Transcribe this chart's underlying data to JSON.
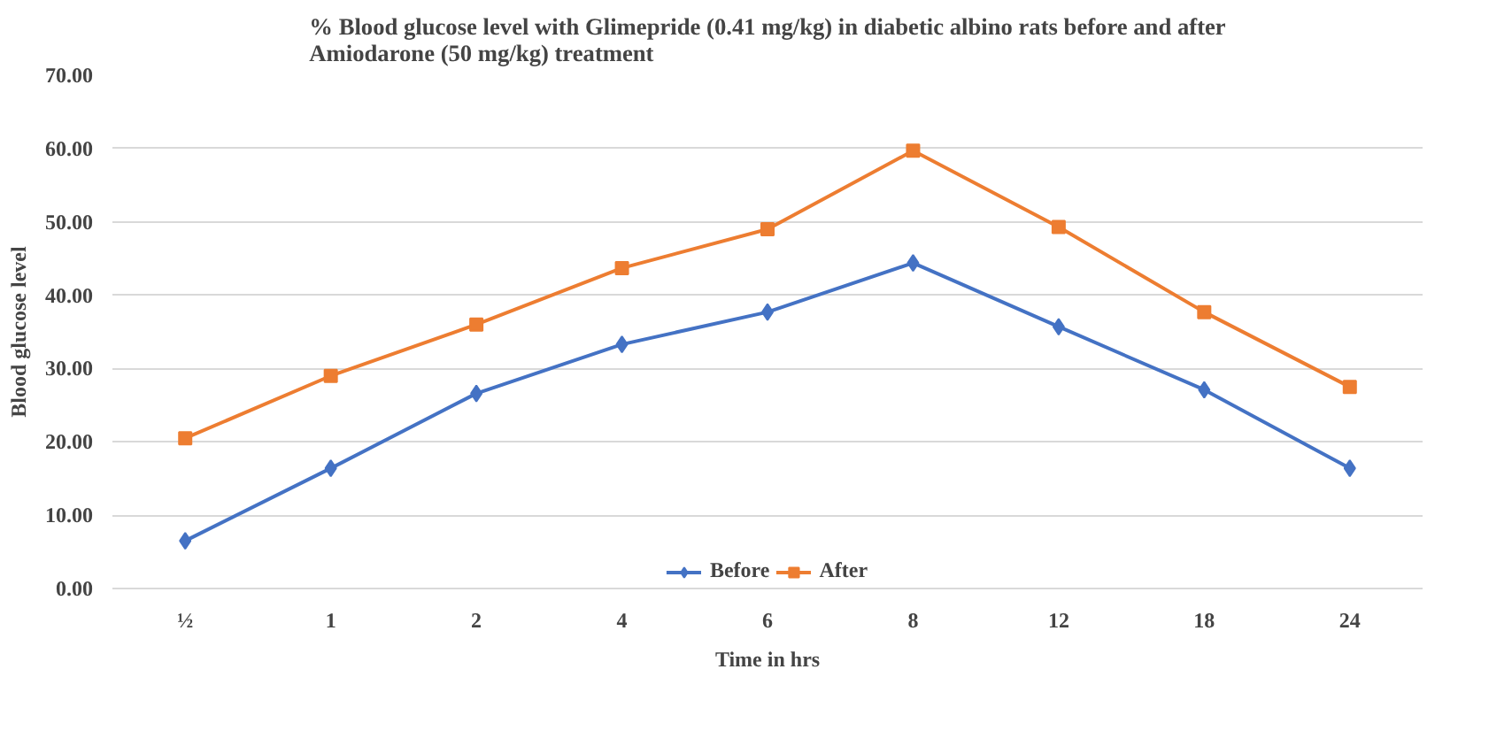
{
  "chart_data": {
    "type": "line",
    "title": "% Blood glucose level with Glimepride (0.41 mg/kg) in diabetic albino rats before and after\nAmiodarone (50 mg/kg) treatment",
    "xlabel": "Time in hrs",
    "ylabel": "Blood glucose level",
    "categories": [
      "½",
      "1",
      "2",
      "4",
      "6",
      "8",
      "12",
      "18",
      "24"
    ],
    "series": [
      {
        "name": "Before",
        "color": "#4472c4",
        "marker": "diamond",
        "values": [
          6.5,
          16.4,
          26.6,
          33.3,
          37.7,
          44.4,
          35.7,
          27.1,
          16.4
        ]
      },
      {
        "name": "After",
        "color": "#ed7d31",
        "marker": "square",
        "values": [
          20.5,
          29.0,
          36.0,
          43.7,
          49.0,
          59.7,
          49.3,
          37.7,
          27.5
        ]
      }
    ],
    "ylim": [
      0,
      70
    ],
    "yticks": [
      {
        "value": 0,
        "label": "0.00"
      },
      {
        "value": 10,
        "label": "10.00"
      },
      {
        "value": 20,
        "label": "20.00"
      },
      {
        "value": 30,
        "label": "30.00"
      },
      {
        "value": 40,
        "label": "40.00"
      },
      {
        "value": 50,
        "label": "50.00"
      },
      {
        "value": 60,
        "label": "60.00"
      },
      {
        "value": 70,
        "label": "70.00"
      }
    ],
    "grid": "y",
    "legend": "bottom",
    "line_style": "solid"
  }
}
